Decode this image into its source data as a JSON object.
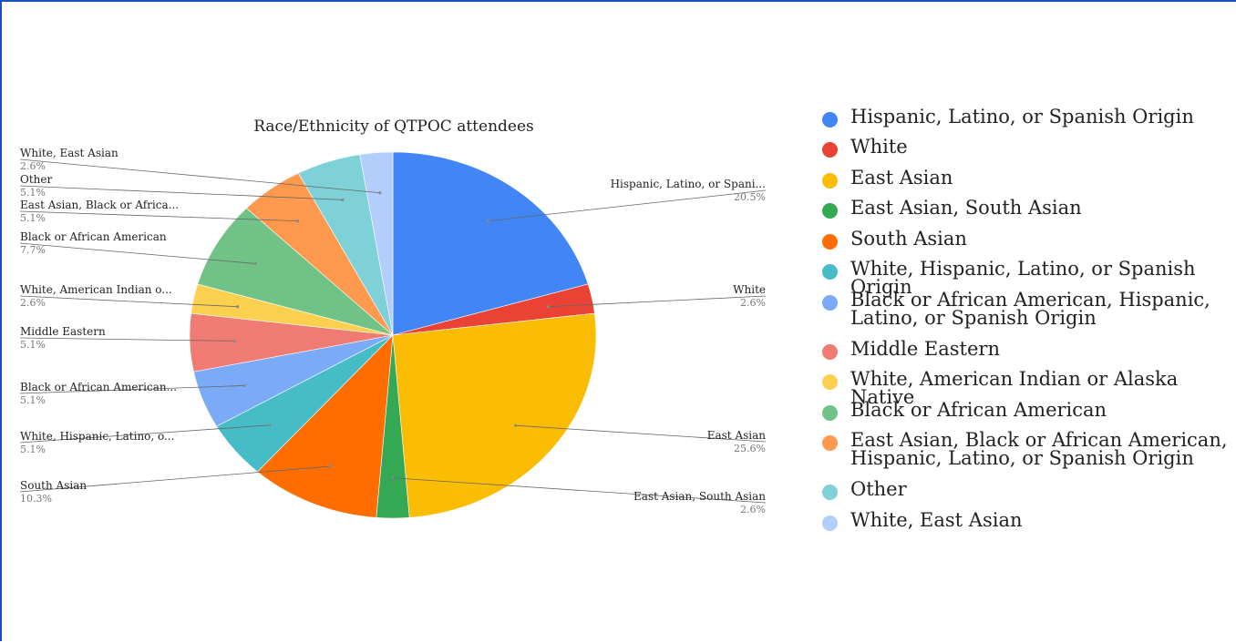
{
  "chart_data": {
    "type": "pie",
    "title": "Race/Ethnicity of QTPOC attendees",
    "slices": [
      {
        "label": "Hispanic, Latino, or Spanish Origin",
        "value": 20.5,
        "color": "#4285f4"
      },
      {
        "label": "White",
        "value": 2.6,
        "color": "#ea4335"
      },
      {
        "label": "East Asian",
        "value": 25.6,
        "color": "#fbbc04"
      },
      {
        "label": "East Asian, South Asian",
        "value": 2.6,
        "color": "#34a853"
      },
      {
        "label": "South Asian",
        "value": 10.3,
        "color": "#ff6d01"
      },
      {
        "label": "White, Hispanic, Latino, or Spanish Origin",
        "value": 5.1,
        "color": "#46bdc6"
      },
      {
        "label": "Black or African American, Hispanic, Latino, or Spanish Origin",
        "value": 5.1,
        "color": "#7baaf7"
      },
      {
        "label": "Middle Eastern",
        "value": 5.1,
        "color": "#f07b72"
      },
      {
        "label": "White, American Indian or Alaska Native",
        "value": 2.6,
        "color": "#fcd04f"
      },
      {
        "label": "Black or African American",
        "value": 7.7,
        "color": "#71c287"
      },
      {
        "label": "East Asian, Black or African American, Hispanic, Latino, or Spanish Origin",
        "value": 5.1,
        "color": "#ff994d"
      },
      {
        "label": "Other",
        "value": 5.1,
        "color": "#7ed1d7"
      },
      {
        "label": "White, East Asian",
        "value": 2.6,
        "color": "#b3cefb"
      }
    ],
    "callouts": [
      {
        "label": "Hispanic, Latino, or Spani...",
        "pct": "20.5%"
      },
      {
        "label": "White",
        "pct": "2.6%"
      },
      {
        "label": "East Asian",
        "pct": "25.6%"
      },
      {
        "label": "East Asian, South Asian",
        "pct": "2.6%"
      },
      {
        "label": "South Asian",
        "pct": "10.3%"
      },
      {
        "label": "White, Hispanic, Latino, o...",
        "pct": "5.1%"
      },
      {
        "label": "Black or African American...",
        "pct": "5.1%"
      },
      {
        "label": "Middle Eastern",
        "pct": "5.1%"
      },
      {
        "label": "White, American Indian o...",
        "pct": "2.6%"
      },
      {
        "label": "Black or African American",
        "pct": "7.7%"
      },
      {
        "label": "East Asian, Black or Africa...",
        "pct": "5.1%"
      },
      {
        "label": "Other",
        "pct": "5.1%"
      },
      {
        "label": "White, East Asian",
        "pct": "2.6%"
      }
    ],
    "legend": [
      "Hispanic, Latino, or Spanish Origin",
      "White",
      "East Asian",
      "East Asian, South Asian",
      "South Asian",
      "White, Hispanic, Latino, or Spanish Origin",
      "Black or African American, Hispanic, Latino, or Spanish Origin",
      "Middle Eastern",
      "White, American Indian or Alaska Native",
      "Black or African American",
      "East Asian, Black or African American, Hispanic, Latino, or Spanish Origin",
      "Other",
      "White, East Asian"
    ],
    "legend_placement": "right"
  }
}
